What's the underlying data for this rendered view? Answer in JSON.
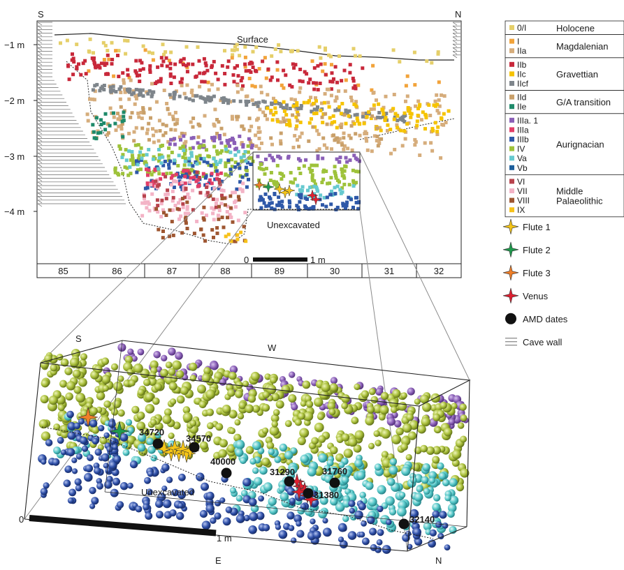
{
  "section": {
    "end_left": "S",
    "end_right": "N",
    "surface_label": "Surface",
    "depth_labels": [
      "−1 m",
      "−2 m",
      "−3 m",
      "−4 m"
    ],
    "unexcavated_label": "Unexcavated",
    "scale_start": "0",
    "scale_end": "1 m",
    "squares": [
      "85",
      "86",
      "87",
      "88",
      "89",
      "30",
      "31",
      "32"
    ]
  },
  "legend": {
    "groups": [
      {
        "name": "Holocene",
        "layers": [
          {
            "code": "0/I",
            "color": "#e5cf6a"
          }
        ]
      },
      {
        "name": "Magdalenian",
        "layers": [
          {
            "code": "I",
            "color": "#f2a33a"
          },
          {
            "code": "IIa",
            "color": "#d6ad7c"
          }
        ]
      },
      {
        "name": "Gravettian",
        "layers": [
          {
            "code": "IIb",
            "color": "#c8283a"
          },
          {
            "code": "IIc",
            "color": "#f6c300"
          },
          {
            "code": "IIcf",
            "color": "#7e858b"
          }
        ]
      },
      {
        "name": "G/A transition",
        "layers": [
          {
            "code": "IId",
            "color": "#c9a06a"
          },
          {
            "code": "IIe",
            "color": "#1e8a6a"
          }
        ]
      },
      {
        "name": "Aurignacian",
        "layers": [
          {
            "code": "IIIa. 1",
            "color": "#8a5fb7"
          },
          {
            "code": "IIIa",
            "color": "#e23d67"
          },
          {
            "code": "IIIb",
            "color": "#2e58a8"
          },
          {
            "code": "IV",
            "color": "#9ec23a"
          },
          {
            "code": "Va",
            "color": "#66c9cf"
          },
          {
            "code": "Vb",
            "color": "#1d5f9c"
          }
        ]
      },
      {
        "name": "Middle\nPalaeolithic",
        "layers": [
          {
            "code": "VI",
            "color": "#b8434d"
          },
          {
            "code": "VII",
            "color": "#f3b3c6"
          },
          {
            "code": "VIII",
            "color": "#9e5631"
          },
          {
            "code": "IX",
            "color": "#f7c21a"
          }
        ]
      }
    ],
    "symbols": [
      {
        "label": "Flute 1",
        "kind": "star",
        "color": "#f5c518"
      },
      {
        "label": "Flute 2",
        "kind": "star",
        "color": "#1f9a4d"
      },
      {
        "label": "Flute 3",
        "kind": "star",
        "color": "#f07f28"
      },
      {
        "label": "Venus",
        "kind": "star",
        "color": "#e02030"
      },
      {
        "label": "AMD dates",
        "kind": "dot",
        "color": "#111111"
      },
      {
        "label": "Cave wall",
        "kind": "hatch",
        "color": "#555555"
      }
    ]
  },
  "block": {
    "corner_s": "S",
    "corner_w": "W",
    "corner_e": "E",
    "corner_n": "N",
    "zero": "0",
    "scale_label": "1 m",
    "unexcavated_label": "Unexcavated",
    "dates": [
      {
        "label": "34720"
      },
      {
        "label": "34570"
      },
      {
        "label": "40000"
      },
      {
        "label": "31290"
      },
      {
        "label": "31760"
      },
      {
        "label": "31380"
      },
      {
        "label": "32140"
      }
    ]
  },
  "colors": {
    "outline": "#222222",
    "connector": "#8a8a8a",
    "dot_purple": "#8a5fb7",
    "dot_green": "#a9bf3a",
    "dot_cyan": "#55c7c8",
    "dot_blue": "#2e4fa8"
  }
}
